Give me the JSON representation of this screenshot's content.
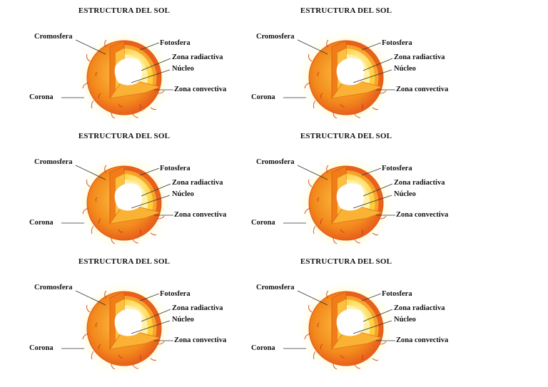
{
  "diagram": {
    "title": "ESTRUCTURA DEL SOL",
    "labels": {
      "cromosfera": "Cromosfera",
      "fotosfera": "Fotosfera",
      "zona_radiactiva": "Zona radiactiva",
      "nucleo": "Núcleo",
      "zona_convectiva": "Zona convectiva",
      "corona": "Corona"
    },
    "colors": {
      "corona_glow": "#fff3a0",
      "photosphere_outer": "#f07d18",
      "photosphere_inner": "#f9b234",
      "chromosphere_band": "#e8601c",
      "convective_zone": "#ffd84a",
      "radiative_zone": "#fff2a6",
      "core": "#ffffff",
      "filaments": "#c0361a"
    }
  },
  "panels": [
    {
      "id": "panel-1"
    },
    {
      "id": "panel-2"
    },
    {
      "id": "panel-3"
    },
    {
      "id": "panel-4"
    },
    {
      "id": "panel-5"
    },
    {
      "id": "panel-6"
    }
  ]
}
